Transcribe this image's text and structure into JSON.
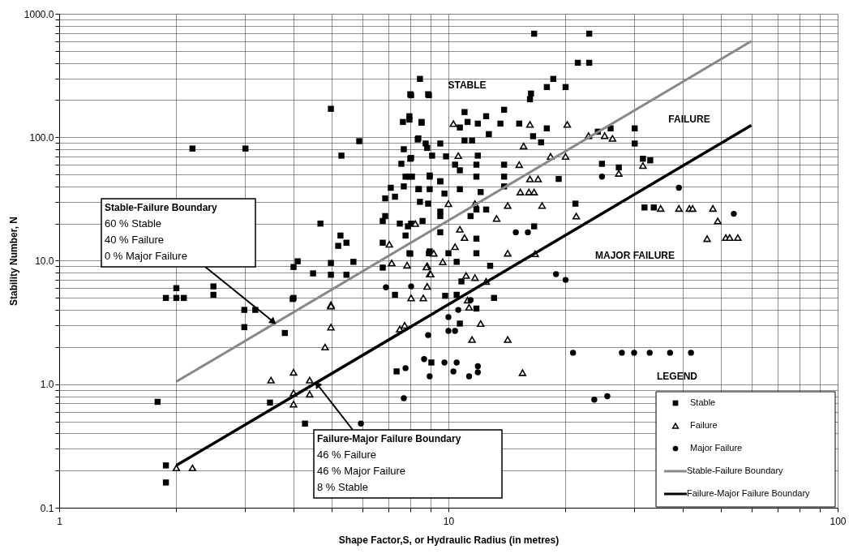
{
  "chart_data": {
    "type": "scatter",
    "xlabel": "Shape Factor,S, or Hydraulic Radius (in metres)",
    "ylabel": "Stability Number, N",
    "log": "xy",
    "grid": true,
    "legend": "bottom right",
    "xlim": [
      1,
      100
    ],
    "ylim": [
      0.1,
      1000
    ],
    "xticks": [
      1,
      {
        "value": 2,
        "label": null
      },
      {
        "value": 3,
        "label": null
      },
      {
        "value": 4,
        "label": null
      },
      {
        "value": 5,
        "label": null
      },
      {
        "value": 6,
        "label": null
      },
      {
        "value": 7,
        "label": null
      },
      {
        "value": 8,
        "label": null
      },
      {
        "value": 9,
        "label": null
      },
      10,
      {
        "value": 20,
        "label": null
      },
      {
        "value": 30,
        "label": null
      },
      {
        "value": 40,
        "label": null
      },
      {
        "value": 50,
        "label": null
      },
      {
        "value": 60,
        "label": null
      },
      {
        "value": 70,
        "label": null
      },
      {
        "value": 80,
        "label": null
      },
      {
        "value": 90,
        "label": null
      },
      100
    ],
    "yticks": [
      {
        "value": 0.1,
        "label": "0.1"
      },
      {
        "value": 0.2,
        "label": null
      },
      {
        "value": 0.3,
        "label": null
      },
      {
        "value": 0.4,
        "label": null
      },
      {
        "value": 0.5,
        "label": null
      },
      {
        "value": 0.6,
        "label": null
      },
      {
        "value": 0.7,
        "label": null
      },
      {
        "value": 0.8,
        "label": null
      },
      {
        "value": 0.9,
        "label": null
      },
      {
        "value": 1,
        "label": "1.0"
      },
      {
        "value": 2,
        "label": null
      },
      {
        "value": 3,
        "label": null
      },
      {
        "value": 4,
        "label": null
      },
      {
        "value": 5,
        "label": null
      },
      {
        "value": 6,
        "label": null
      },
      {
        "value": 7,
        "label": null
      },
      {
        "value": 8,
        "label": null
      },
      {
        "value": 9,
        "label": null
      },
      {
        "value": 10,
        "label": "10.0"
      },
      {
        "value": 20,
        "label": null
      },
      {
        "value": 30,
        "label": null
      },
      {
        "value": 40,
        "label": null
      },
      {
        "value": 50,
        "label": null
      },
      {
        "value": 60,
        "label": null
      },
      {
        "value": 70,
        "label": null
      },
      {
        "value": 80,
        "label": null
      },
      {
        "value": 90,
        "label": null
      },
      {
        "value": 100,
        "label": "100.0"
      },
      {
        "value": 200,
        "label": null
      },
      {
        "value": 300,
        "label": null
      },
      {
        "value": 400,
        "label": null
      },
      {
        "value": 500,
        "label": null
      },
      {
        "value": 600,
        "label": null
      },
      {
        "value": 700,
        "label": null
      },
      {
        "value": 800,
        "label": null
      },
      {
        "value": 900,
        "label": null
      },
      {
        "value": 1000,
        "label": "1000.0"
      }
    ],
    "series": [
      {
        "name": "Stable",
        "color": "#000000",
        "marker": "square",
        "x": [
          8.45,
          7.98,
          8.87,
          4.99,
          7.94,
          7.64,
          8.53,
          5.9,
          2.2,
          3.01,
          5.31,
          8.37,
          8.74,
          7.68,
          7.98,
          7.57,
          8.95,
          7.76,
          8.06,
          9.53,
          7.11,
          7.68,
          8.4,
          7.29,
          6.88,
          8.45,
          8.87,
          6.88,
          6.78,
          7.5,
          7.87,
          8.58,
          4.69,
          5.28,
          5.47,
          5.21,
          7.76,
          6.78,
          7.98,
          8.95,
          4.1,
          4.0,
          4.99,
          5.7,
          4.49,
          4.99,
          5.47,
          6.78,
          7.29,
          2.0,
          1.88,
          2.0,
          2.09,
          2.49,
          2.49,
          4.0,
          2.99,
          3.19,
          2.99,
          3.8,
          3.98,
          1.88,
          1.88,
          3.48,
          4.28,
          1.79,
          7.36,
          9.04,
          16.6,
          23.0,
          21.5,
          23.0,
          18.6,
          17.9,
          20.0,
          16.3,
          16.2,
          8.02,
          8.91,
          11.0,
          13.9,
          12.5,
          11.2,
          11.9,
          13.6,
          15.2,
          8.53,
          7.94,
          10.7,
          12.7,
          11.5,
          16.5,
          17.3,
          17.9,
          24.2,
          26.1,
          30.1,
          30.1,
          8.34,
          8.82,
          9.53,
          8.02,
          9.08,
          9.86,
          11.0,
          11.9,
          10.4,
          10.7,
          11.8,
          11.8,
          13.9,
          13.9,
          13.9,
          8.95,
          7.94,
          9.53,
          8.37,
          8.95,
          9.77,
          10.7,
          12.1,
          9.53,
          9.53,
          11.8,
          11.4,
          12.5,
          8.02,
          9.53,
          16.6,
          21.2,
          24.8,
          27.4,
          31.6,
          33.0,
          31.9,
          33.7,
          19.2,
          11.8,
          11.8,
          10,
          7.94,
          8.91,
          10.5,
          12.8,
          10.8,
          9.81,
          10.5,
          13.1,
          11.8,
          10.7
        ],
        "values": [
          297,
          223,
          223,
          170,
          148,
          133,
          133,
          93,
          81,
          81,
          71,
          98,
          89,
          80,
          67,
          61,
          49,
          48,
          48,
          44,
          39,
          40,
          38,
          33,
          32,
          30,
          29,
          23,
          21,
          20,
          19,
          21,
          20,
          16,
          14,
          13.2,
          16,
          14,
          11.4,
          11.9,
          9.9,
          8.9,
          9.6,
          9.8,
          7.9,
          7.7,
          7.7,
          8.8,
          5.3,
          6.0,
          5.0,
          5.0,
          5.0,
          6.2,
          5.3,
          5.0,
          4.0,
          4.0,
          2.9,
          2.6,
          4.9,
          0.22,
          0.16,
          0.71,
          0.48,
          0.72,
          1.27,
          1.5,
          690,
          690,
          401,
          401,
          297,
          255,
          255,
          226,
          203,
          219,
          219,
          160,
          167,
          148,
          133,
          129,
          129,
          129,
          131,
          139,
          120,
          106,
          94,
          102,
          91,
          118,
          111,
          118,
          118,
          89,
          96,
          82,
          89,
          68,
          71,
          70,
          94,
          71,
          60,
          54,
          60,
          48,
          60,
          48,
          40,
          48,
          48,
          44,
          38,
          38,
          35,
          38,
          36,
          25,
          23,
          26,
          23,
          26,
          20,
          17,
          19,
          29,
          61,
          57,
          67,
          65,
          27,
          27,
          46,
          15.1,
          11.5,
          11.5,
          11.5,
          11.5,
          9.8,
          9.1,
          6.8,
          5.2,
          5.3,
          5.0,
          4.1,
          3.1
        ]
      },
      {
        "name": "Failure",
        "color": "#000000",
        "marker": "triangle",
        "x": [
          7.05,
          7.15,
          7.83,
          8.22,
          9.17,
          8.82,
          8.95,
          8.82,
          8.02,
          8.62,
          4.99,
          9.67,
          2.0,
          2.2,
          3.5,
          4.0,
          4.0,
          4.0,
          4.4,
          4.4,
          4.82,
          4.99,
          4.99,
          7.5,
          7.72,
          10.3,
          16.2,
          20.2,
          15.6,
          10.6,
          18.3,
          20.0,
          15.2,
          26.4,
          25.2,
          22.9,
          31.6,
          27.4,
          16.2,
          17.0,
          15.3,
          16.1,
          16.6,
          10,
          11.7,
          14.2,
          17.4,
          13.3,
          21.3,
          35.1,
          10.7,
          11.0,
          10.4,
          14.2,
          16.7,
          8.78,
          9.0,
          11.1,
          11.7,
          12.5,
          11.2,
          11.3,
          12.1,
          11.5,
          14.2,
          15.5,
          39.1,
          41.6,
          42.4,
          47.8,
          49.2,
          46.2,
          51.6,
          52.8,
          55.4
        ],
        "values": [
          13.6,
          9.6,
          9.2,
          20,
          11.5,
          9.1,
          7.8,
          6.2,
          5.0,
          5.0,
          4.4,
          9.8,
          0.21,
          0.21,
          1.08,
          1.25,
          0.85,
          0.69,
          1.08,
          0.83,
          2.0,
          2.9,
          4.3,
          2.8,
          3.0,
          129,
          127,
          127,
          85,
          71,
          70,
          70,
          60,
          98,
          103,
          103,
          59,
          51,
          46,
          46,
          36,
          36,
          36,
          29,
          29,
          28,
          28,
          22,
          23,
          26.5,
          18,
          15.4,
          13.0,
          11.5,
          11.4,
          8.9,
          7.8,
          7.6,
          7.3,
          6.8,
          4.8,
          4.2,
          3.1,
          2.3,
          2.3,
          1.24,
          26.5,
          26.5,
          26.5,
          26.5,
          21,
          15.1,
          15.4,
          15.4,
          15.4
        ]
      },
      {
        "name": "Major Failure",
        "color": "#000000",
        "marker": "circle",
        "x": [
          6.91,
          8.02,
          5.96,
          7.76,
          7.68,
          8.66,
          8.95,
          8.87,
          9.77,
          14.9,
          16.0,
          24.8,
          18.9,
          20.0,
          11.4,
          10.6,
          10,
          10,
          10.4,
          10.5,
          11.9,
          10.3,
          11.9,
          11.3,
          20.9,
          27.9,
          30.0,
          32.9,
          37.1,
          42.0,
          23.7,
          25.6,
          39.1,
          54.1
        ],
        "values": [
          6.1,
          6.2,
          0.48,
          1.35,
          0.77,
          1.6,
          1.16,
          2.5,
          1.5,
          17,
          17,
          48,
          7.8,
          7.0,
          4.8,
          4.0,
          3.5,
          2.7,
          2.7,
          1.5,
          1.4,
          1.27,
          1.25,
          1.16,
          1.8,
          1.8,
          1.8,
          1.8,
          1.8,
          1.8,
          0.75,
          0.8,
          39,
          24
        ]
      },
      {
        "name": "Stable-Failure Boundary",
        "type": "line",
        "color": "#888888",
        "marker": "none",
        "x": [
          2,
          60
        ],
        "values": [
          1.05,
          600
        ]
      },
      {
        "name": "Failure-Major Failure Boundary",
        "type": "line",
        "color": "#000000",
        "marker": "none",
        "x": [
          2,
          60
        ],
        "values": [
          0.22,
          125
        ]
      }
    ],
    "annotations": [
      "STABLE",
      "FAILURE",
      "MAJOR FAILURE",
      "LEGEND",
      {
        "text": "Stable-Failure  Boundary\n60 % Stable\n40 % Failure\n0 % Major Failure",
        "x": 3.55,
        "y": 3.2
      },
      {
        "text": "Failure-Major Failure Boundary\n46 % Failure\n46 % Major Failure\n8 % Stable",
        "x": 4.6,
        "y": 1.0
      }
    ]
  }
}
